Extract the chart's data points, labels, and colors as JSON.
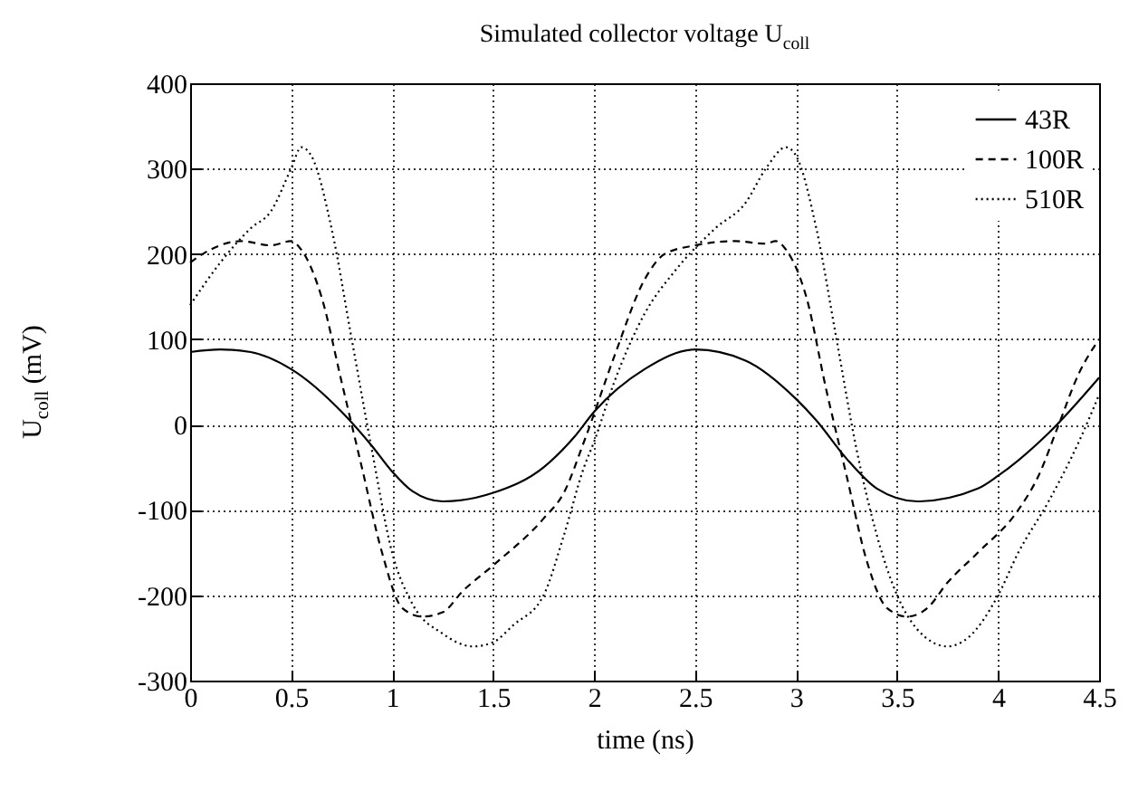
{
  "chart_data": {
    "type": "line",
    "title": "Simulated collector voltage U$_{coll}$",
    "xlabel": "time (ns)",
    "ylabel": "U$_{coll}$ (mV)",
    "xlim": [
      0,
      4.5
    ],
    "xticks": [
      0,
      0.5,
      1,
      1.5,
      2,
      2.5,
      3,
      3.5,
      4,
      4.5
    ],
    "ylim": [
      -300,
      400
    ],
    "yticks": [
      -300,
      -200,
      -100,
      0,
      100,
      200,
      300,
      400
    ],
    "grid": true,
    "legend": "top right",
    "series": [
      {
        "name": "43R",
        "color": "#000000",
        "line_style": "solid",
        "x": [
          0,
          0.15,
          0.3,
          0.5,
          0.75,
          0.9,
          1,
          1.1,
          1.25,
          1.5,
          1.75,
          1.9,
          2,
          2.25,
          2.5,
          2.75,
          3,
          3.1,
          3.25,
          3.4,
          3.6,
          3.9,
          4,
          4.25,
          4.5
        ],
        "values": [
          85,
          88,
          85,
          65,
          15,
          -25,
          -55,
          -78,
          -90,
          -80,
          -50,
          -15,
          15,
          65,
          88,
          75,
          30,
          5,
          -40,
          -75,
          -90,
          -75,
          -60,
          -10,
          55
        ]
      },
      {
        "name": "100R",
        "color": "#000000",
        "line_style": "dashed",
        "x": [
          0,
          0.1,
          0.25,
          0.4,
          0.5,
          0.55,
          0.65,
          0.75,
          0.85,
          0.95,
          1.05,
          1.15,
          1.25,
          1.35,
          1.5,
          1.75,
          1.85,
          1.95,
          2.1,
          2.25,
          2.35,
          2.5,
          2.7,
          2.85,
          2.9,
          2.95,
          3.05,
          3.15,
          3.25,
          3.35,
          3.45,
          3.55,
          3.65,
          3.75,
          3.9,
          4.1,
          4.2,
          4.3,
          4.4,
          4.5
        ],
        "values": [
          190,
          205,
          215,
          210,
          215,
          205,
          150,
          50,
          -50,
          -150,
          -215,
          -225,
          -220,
          -195,
          -165,
          -110,
          -80,
          -20,
          80,
          170,
          200,
          210,
          215,
          212,
          215,
          205,
          150,
          40,
          -60,
          -160,
          -215,
          -225,
          -215,
          -185,
          -150,
          -100,
          -60,
          0,
          60,
          100
        ]
      },
      {
        "name": "510R",
        "color": "#000000",
        "line_style": "dotted",
        "x": [
          0,
          0.15,
          0.3,
          0.4,
          0.5,
          0.55,
          0.6,
          0.7,
          0.8,
          0.9,
          1,
          1.1,
          1.25,
          1.4,
          1.5,
          1.6,
          1.75,
          1.85,
          1.95,
          2,
          2.1,
          2.25,
          2.4,
          2.6,
          2.75,
          2.85,
          2.95,
          3,
          3.1,
          3.2,
          3.3,
          3.4,
          3.5,
          3.6,
          3.75,
          3.85,
          4,
          4.1,
          4.25,
          4.4,
          4.5
        ],
        "values": [
          140,
          190,
          230,
          250,
          300,
          325,
          315,
          230,
          100,
          -30,
          -150,
          -210,
          -245,
          -260,
          -255,
          -235,
          -200,
          -130,
          -50,
          -20,
          50,
          130,
          180,
          230,
          260,
          300,
          325,
          315,
          230,
          100,
          -30,
          -130,
          -200,
          -240,
          -260,
          -250,
          -200,
          -150,
          -90,
          -20,
          35
        ]
      }
    ]
  }
}
